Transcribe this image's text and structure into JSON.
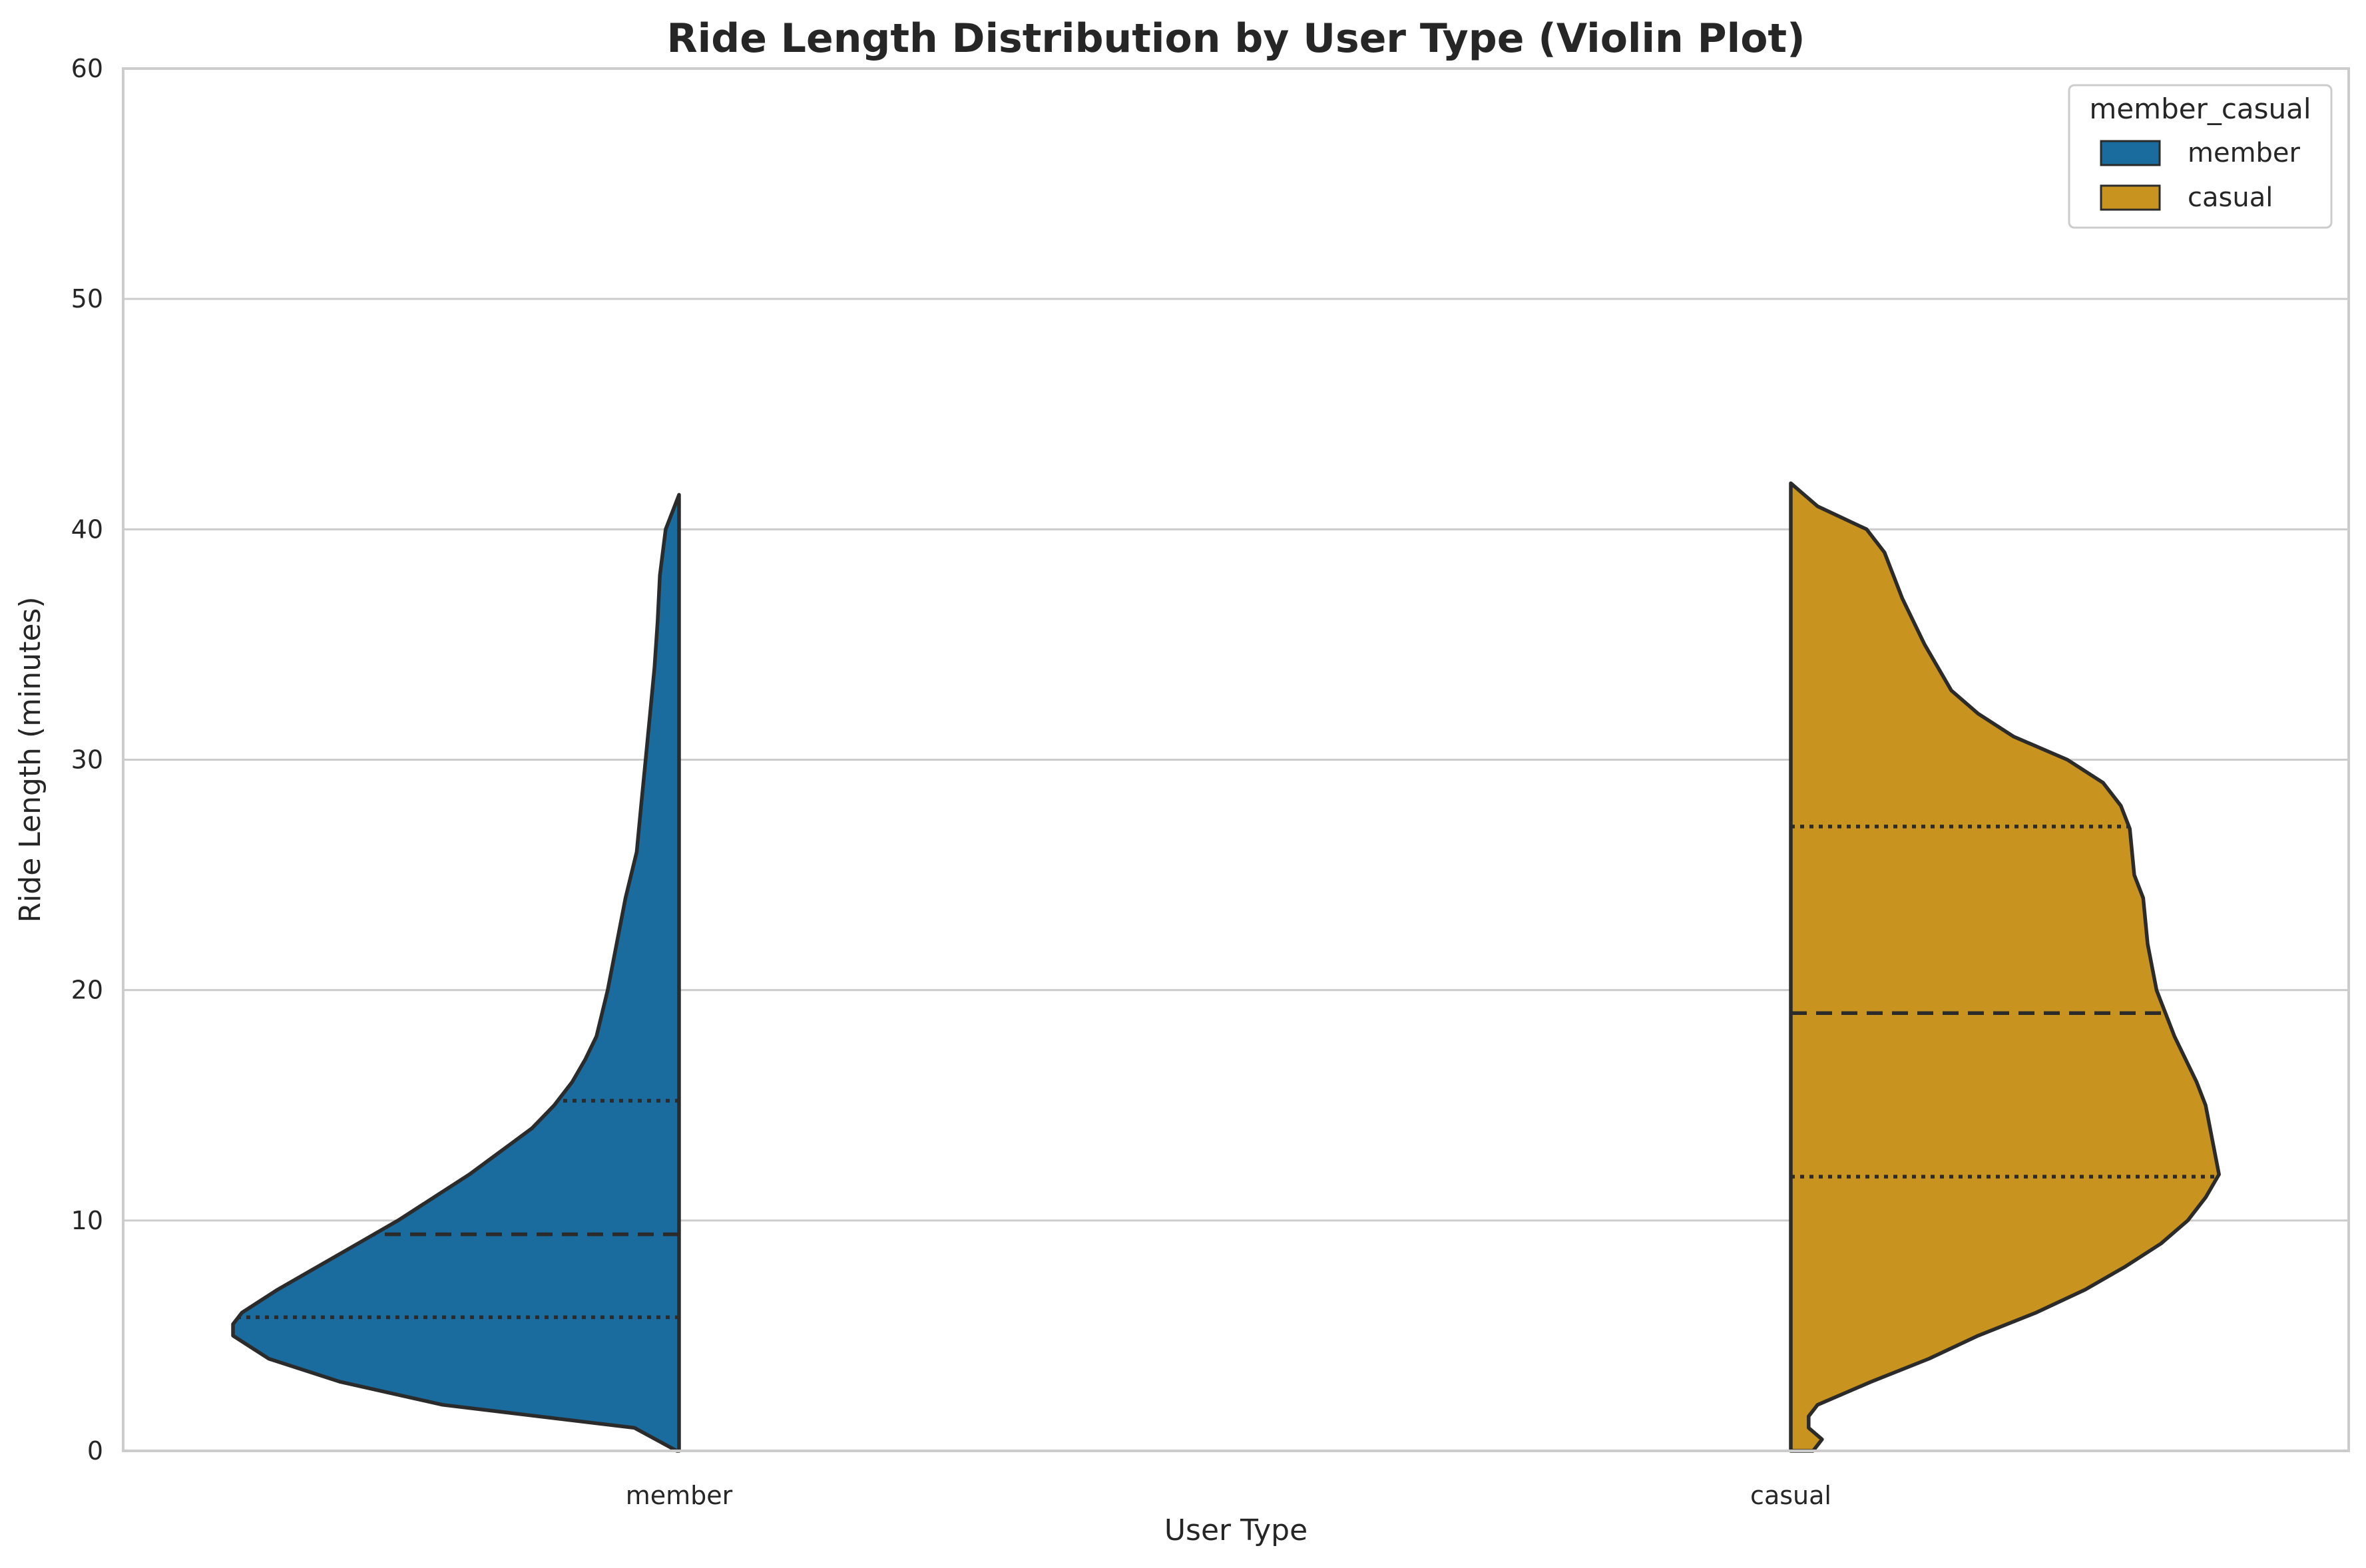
{
  "chart_data": {
    "type": "violin",
    "title": "Ride Length Distribution by User Type (Violin Plot)",
    "xlabel": "User Type",
    "ylabel": "Ride Length (minutes)",
    "categories": [
      "member",
      "casual"
    ],
    "ylim": [
      0,
      60
    ],
    "yticks": [
      0,
      10,
      20,
      30,
      40,
      50,
      60
    ],
    "grid": "horizontal",
    "split": true,
    "inner": "quartile",
    "legend": {
      "title": "member_casual",
      "placement": "top-right",
      "entries": [
        "member",
        "casual"
      ]
    },
    "series": [
      {
        "name": "member",
        "category": "member",
        "side": "left",
        "color": "#1a6b9e",
        "quartiles": {
          "q1": 5.8,
          "median": 9.4,
          "q3": 15.2
        },
        "density": [
          [
            0.0,
            0.005
          ],
          [
            1.0,
            0.1
          ],
          [
            2.0,
            0.53
          ],
          [
            3.0,
            0.76
          ],
          [
            4.0,
            0.92
          ],
          [
            5.0,
            1.0
          ],
          [
            5.5,
            1.0
          ],
          [
            6.0,
            0.98
          ],
          [
            7.0,
            0.9
          ],
          [
            8.0,
            0.81
          ],
          [
            9.0,
            0.72
          ],
          [
            10.0,
            0.63
          ],
          [
            11.0,
            0.55
          ],
          [
            12.0,
            0.47
          ],
          [
            13.0,
            0.4
          ],
          [
            14.0,
            0.33
          ],
          [
            15.0,
            0.28
          ],
          [
            16.0,
            0.24
          ],
          [
            17.0,
            0.21
          ],
          [
            18.0,
            0.185
          ],
          [
            20.0,
            0.16
          ],
          [
            22.0,
            0.14
          ],
          [
            24.0,
            0.12
          ],
          [
            26.0,
            0.095
          ],
          [
            28.0,
            0.085
          ],
          [
            30.0,
            0.075
          ],
          [
            32.0,
            0.065
          ],
          [
            34.0,
            0.055
          ],
          [
            36.0,
            0.048
          ],
          [
            38.0,
            0.043
          ],
          [
            40.0,
            0.03
          ],
          [
            41.5,
            0.0
          ]
        ]
      },
      {
        "name": "casual",
        "category": "casual",
        "side": "right",
        "color": "#c99320",
        "quartiles": {
          "q1": 11.9,
          "median": 19.0,
          "q3": 27.1
        },
        "density": [
          [
            0.0,
            0.05
          ],
          [
            0.5,
            0.07
          ],
          [
            1.0,
            0.04
          ],
          [
            1.5,
            0.04
          ],
          [
            2.0,
            0.06
          ],
          [
            2.5,
            0.12
          ],
          [
            3.0,
            0.18
          ],
          [
            4.0,
            0.31
          ],
          [
            5.0,
            0.42
          ],
          [
            6.0,
            0.55
          ],
          [
            7.0,
            0.66
          ],
          [
            8.0,
            0.75
          ],
          [
            9.0,
            0.83
          ],
          [
            10.0,
            0.89
          ],
          [
            11.0,
            0.93
          ],
          [
            12.0,
            0.96
          ],
          [
            13.0,
            0.95
          ],
          [
            15.0,
            0.93
          ],
          [
            16.0,
            0.91
          ],
          [
            18.0,
            0.86
          ],
          [
            20.0,
            0.82
          ],
          [
            22.0,
            0.8
          ],
          [
            24.0,
            0.79
          ],
          [
            25.0,
            0.77
          ],
          [
            27.0,
            0.76
          ],
          [
            28.0,
            0.74
          ],
          [
            29.0,
            0.7
          ],
          [
            30.0,
            0.62
          ],
          [
            31.0,
            0.5
          ],
          [
            32.0,
            0.42
          ],
          [
            33.0,
            0.36
          ],
          [
            35.0,
            0.3
          ],
          [
            37.0,
            0.25
          ],
          [
            39.0,
            0.21
          ],
          [
            40.0,
            0.17
          ],
          [
            41.0,
            0.06
          ],
          [
            42.0,
            0.0
          ]
        ]
      }
    ]
  }
}
